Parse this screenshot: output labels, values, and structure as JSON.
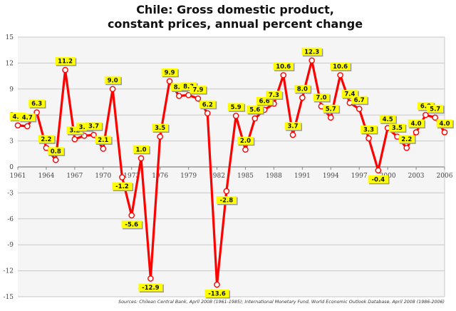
{
  "chart_data": {
    "type": "line",
    "title": [
      "Chile: Gross domestic product,",
      "constant prices, annual percent change"
    ],
    "xlabel": "",
    "ylabel": "",
    "x": [
      1961,
      1962,
      1963,
      1964,
      1965,
      1966,
      1967,
      1968,
      1969,
      1970,
      1971,
      1972,
      1973,
      1974,
      1975,
      1976,
      1977,
      1978,
      1979,
      1980,
      1981,
      1982,
      1983,
      1984,
      1985,
      1986,
      1987,
      1988,
      1989,
      1990,
      1991,
      1992,
      1993,
      1994,
      1995,
      1996,
      1997,
      1998,
      1999,
      2000,
      2001,
      2002,
      2003,
      2004,
      2005,
      2006
    ],
    "values": [
      4.8,
      4.7,
      6.3,
      2.2,
      0.8,
      11.2,
      3.2,
      3.6,
      3.7,
      2.1,
      9.0,
      -1.2,
      -5.6,
      1.0,
      -12.9,
      3.5,
      9.9,
      8.2,
      8.3,
      7.9,
      6.2,
      -13.6,
      -2.8,
      5.9,
      2.0,
      5.6,
      6.6,
      7.3,
      10.6,
      3.7,
      8.0,
      12.3,
      7.0,
      5.7,
      10.6,
      7.4,
      6.7,
      3.3,
      -0.4,
      4.5,
      3.5,
      2.2,
      4.0,
      6.0,
      5.7,
      4.0
    ],
    "data_labels": [
      "4.8",
      "4.7",
      "6.3",
      "2.2",
      "0.8",
      "11.2",
      "3.2",
      "3.6",
      "3.7",
      "2.1",
      "9.0",
      "-1.2",
      "-5.6",
      "1.0",
      "-12.9",
      "3.5",
      "9.9",
      "8.2",
      "8.3",
      "7.9",
      "6.2",
      "-13.6",
      "-2.8",
      "5.9",
      "2.0",
      "5.6",
      "6.6",
      "7.3",
      "10.6",
      "3.7",
      "8.0",
      "12.3",
      "7.0",
      "5.7",
      "10.6",
      "7.4",
      "6.7",
      "3.3",
      "-0.4",
      "4.5",
      "3.5",
      "2.2",
      "4.0",
      "6.0",
      "5.7",
      "4.0"
    ],
    "xlim": [
      1961,
      2006
    ],
    "ylim": [
      -15,
      15
    ],
    "xticks": [
      "1961",
      "1964",
      "1967",
      "1970",
      "1973",
      "1976",
      "1979",
      "1982",
      "1985",
      "1988",
      "1991",
      "1994",
      "1997",
      "2000",
      "2003",
      "2006"
    ],
    "yticks": [
      "15",
      "12",
      "9",
      "6",
      "3",
      "0",
      "-3",
      "-6",
      "-9",
      "-12",
      "-15"
    ],
    "grid": true,
    "line_color": "#ff0000",
    "label_bg_color": "#ffff00",
    "source": "Sources: Chilean Central Bank, April 2008 (1961-1985); International Monetary Fund, World Economic Outlook Database, April 2008 (1986-2006)"
  }
}
